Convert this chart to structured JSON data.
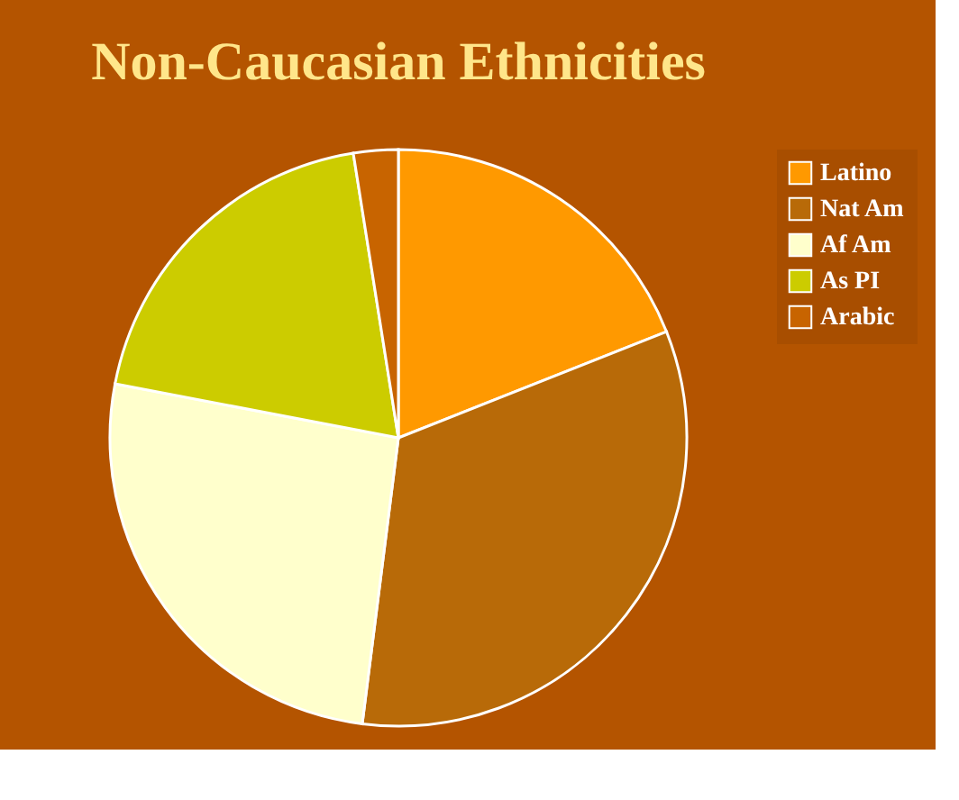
{
  "chart_data": {
    "type": "pie",
    "title": "Non-Caucasian Ethnicities",
    "categories": [
      "Latino",
      "Nat Am",
      "Af Am",
      "As PI",
      "Arabic"
    ],
    "values": [
      19,
      33,
      26,
      19.5,
      2.5
    ],
    "colors": [
      "#ff9900",
      "#b86a08",
      "#ffffcc",
      "#cccc00",
      "#c86400"
    ],
    "legend": "right"
  }
}
